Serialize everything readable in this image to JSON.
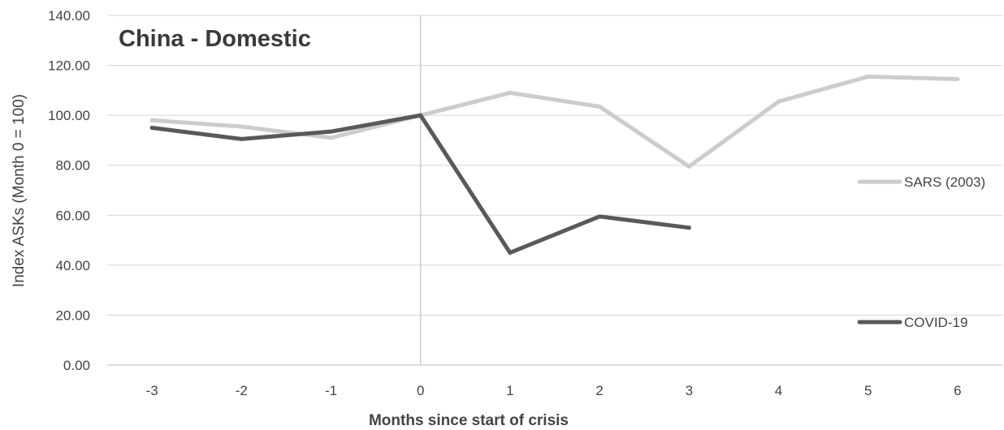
{
  "chart_data": {
    "type": "line",
    "title": "China - Domestic",
    "xlabel": "Months since start of crisis",
    "ylabel": "Index ASKs (Month 0 = 100)",
    "categories": [
      -3,
      -2,
      -1,
      0,
      1,
      2,
      3,
      4,
      5,
      6
    ],
    "ylim": [
      0,
      140
    ],
    "yticks": [
      "0.00",
      "20.00",
      "40.00",
      "60.00",
      "80.00",
      "100.00",
      "120.00",
      "140.00"
    ],
    "grid": true,
    "legend_placement": "right",
    "series": [
      {
        "name": "SARS (2003)",
        "color": "#cccccc",
        "values": [
          98,
          95.5,
          91,
          100,
          109,
          103.5,
          79.5,
          105.5,
          115.5,
          114.5
        ]
      },
      {
        "name": "COVID-19",
        "color": "#595959",
        "values": [
          95,
          90.5,
          93.5,
          100,
          45,
          59.5,
          55,
          null,
          null,
          null
        ]
      }
    ]
  }
}
